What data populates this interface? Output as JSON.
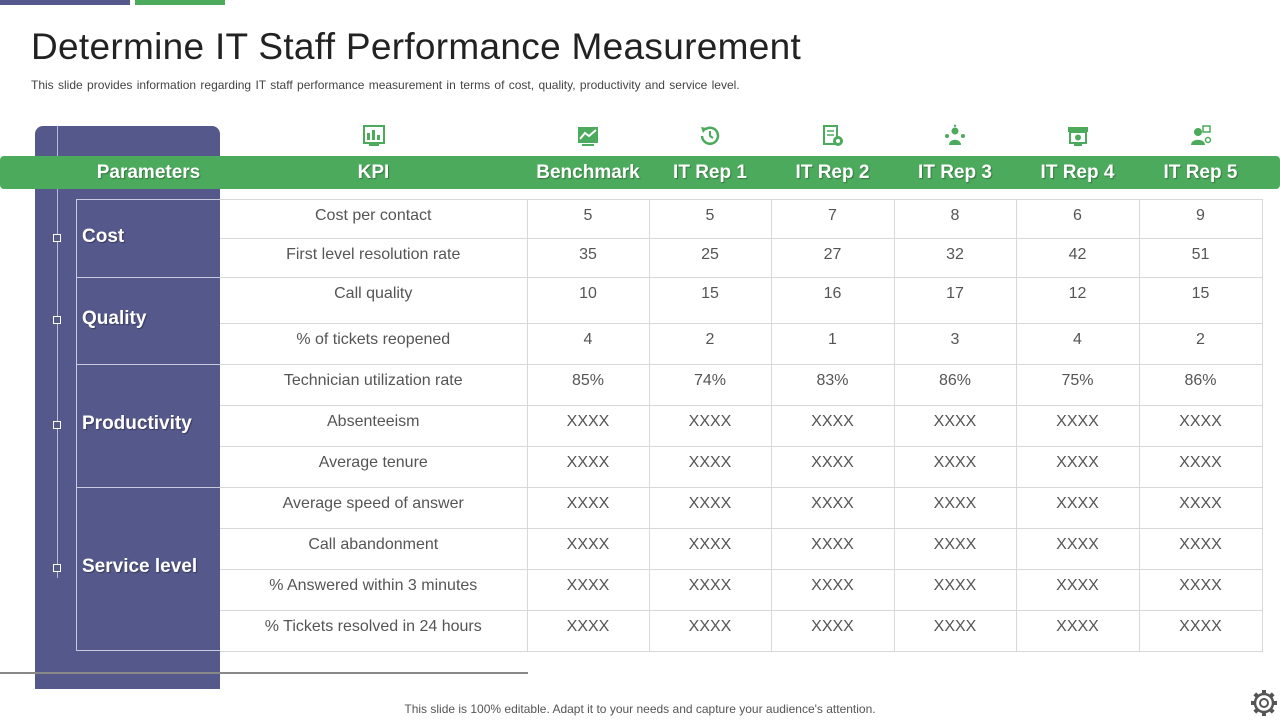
{
  "title": "Determine IT Staff Performance Measurement",
  "subtitle": "This slide provides information regarding IT staff performance measurement in terms of cost, quality, productivity and service level.",
  "colors": {
    "accent_green": "#4caa5c",
    "panel_purple": "#55588a"
  },
  "columns": [
    "Parameters",
    "KPI",
    "Benchmark",
    "IT Rep 1",
    "IT Rep 2",
    "IT Rep 3",
    "IT Rep 4",
    "IT Rep 5"
  ],
  "column_icons": [
    "kpi-board-icon",
    "benchmark-chart-icon",
    "refresh-clock-icon",
    "document-gear-icon",
    "team-icon",
    "monitor-icon",
    "support-agent-icon"
  ],
  "groups": [
    {
      "name": "Cost"
    },
    {
      "name": "Quality"
    },
    {
      "name": "Productivity"
    },
    {
      "name": "Service level"
    }
  ],
  "rows": [
    {
      "kpi": "Cost per contact",
      "values": [
        "5",
        "5",
        "7",
        "8",
        "6",
        "9"
      ]
    },
    {
      "kpi": "First level resolution rate",
      "values": [
        "35",
        "25",
        "27",
        "32",
        "42",
        "51"
      ]
    },
    {
      "kpi": "Call quality",
      "values": [
        "10",
        "15",
        "16",
        "17",
        "12",
        "15"
      ]
    },
    {
      "kpi": "% of tickets reopened",
      "values": [
        "4",
        "2",
        "1",
        "3",
        "4",
        "2"
      ]
    },
    {
      "kpi": "Technician utilization rate",
      "values": [
        "85%",
        "74%",
        "83%",
        "86%",
        "75%",
        "86%"
      ]
    },
    {
      "kpi": "Absenteeism",
      "values": [
        "XXXX",
        "XXXX",
        "XXXX",
        "XXXX",
        "XXXX",
        "XXXX"
      ]
    },
    {
      "kpi": "Average tenure",
      "values": [
        "XXXX",
        "XXXX",
        "XXXX",
        "XXXX",
        "XXXX",
        "XXXX"
      ]
    },
    {
      "kpi": "Average speed of answer",
      "values": [
        "XXXX",
        "XXXX",
        "XXXX",
        "XXXX",
        "XXXX",
        "XXXX"
      ]
    },
    {
      "kpi": "Call abandonment",
      "values": [
        "XXXX",
        "XXXX",
        "XXXX",
        "XXXX",
        "XXXX",
        "XXXX"
      ]
    },
    {
      "kpi": "% Answered within 3 minutes",
      "values": [
        "XXXX",
        "XXXX",
        "XXXX",
        "XXXX",
        "XXXX",
        "XXXX"
      ]
    },
    {
      "kpi": "% Tickets resolved in 24 hours",
      "values": [
        "XXXX",
        "XXXX",
        "XXXX",
        "XXXX",
        "XXXX",
        "XXXX"
      ]
    }
  ],
  "footer": "This slide is 100% editable. Adapt it to your needs and capture your audience's attention.",
  "settings_icon": "gear-icon"
}
